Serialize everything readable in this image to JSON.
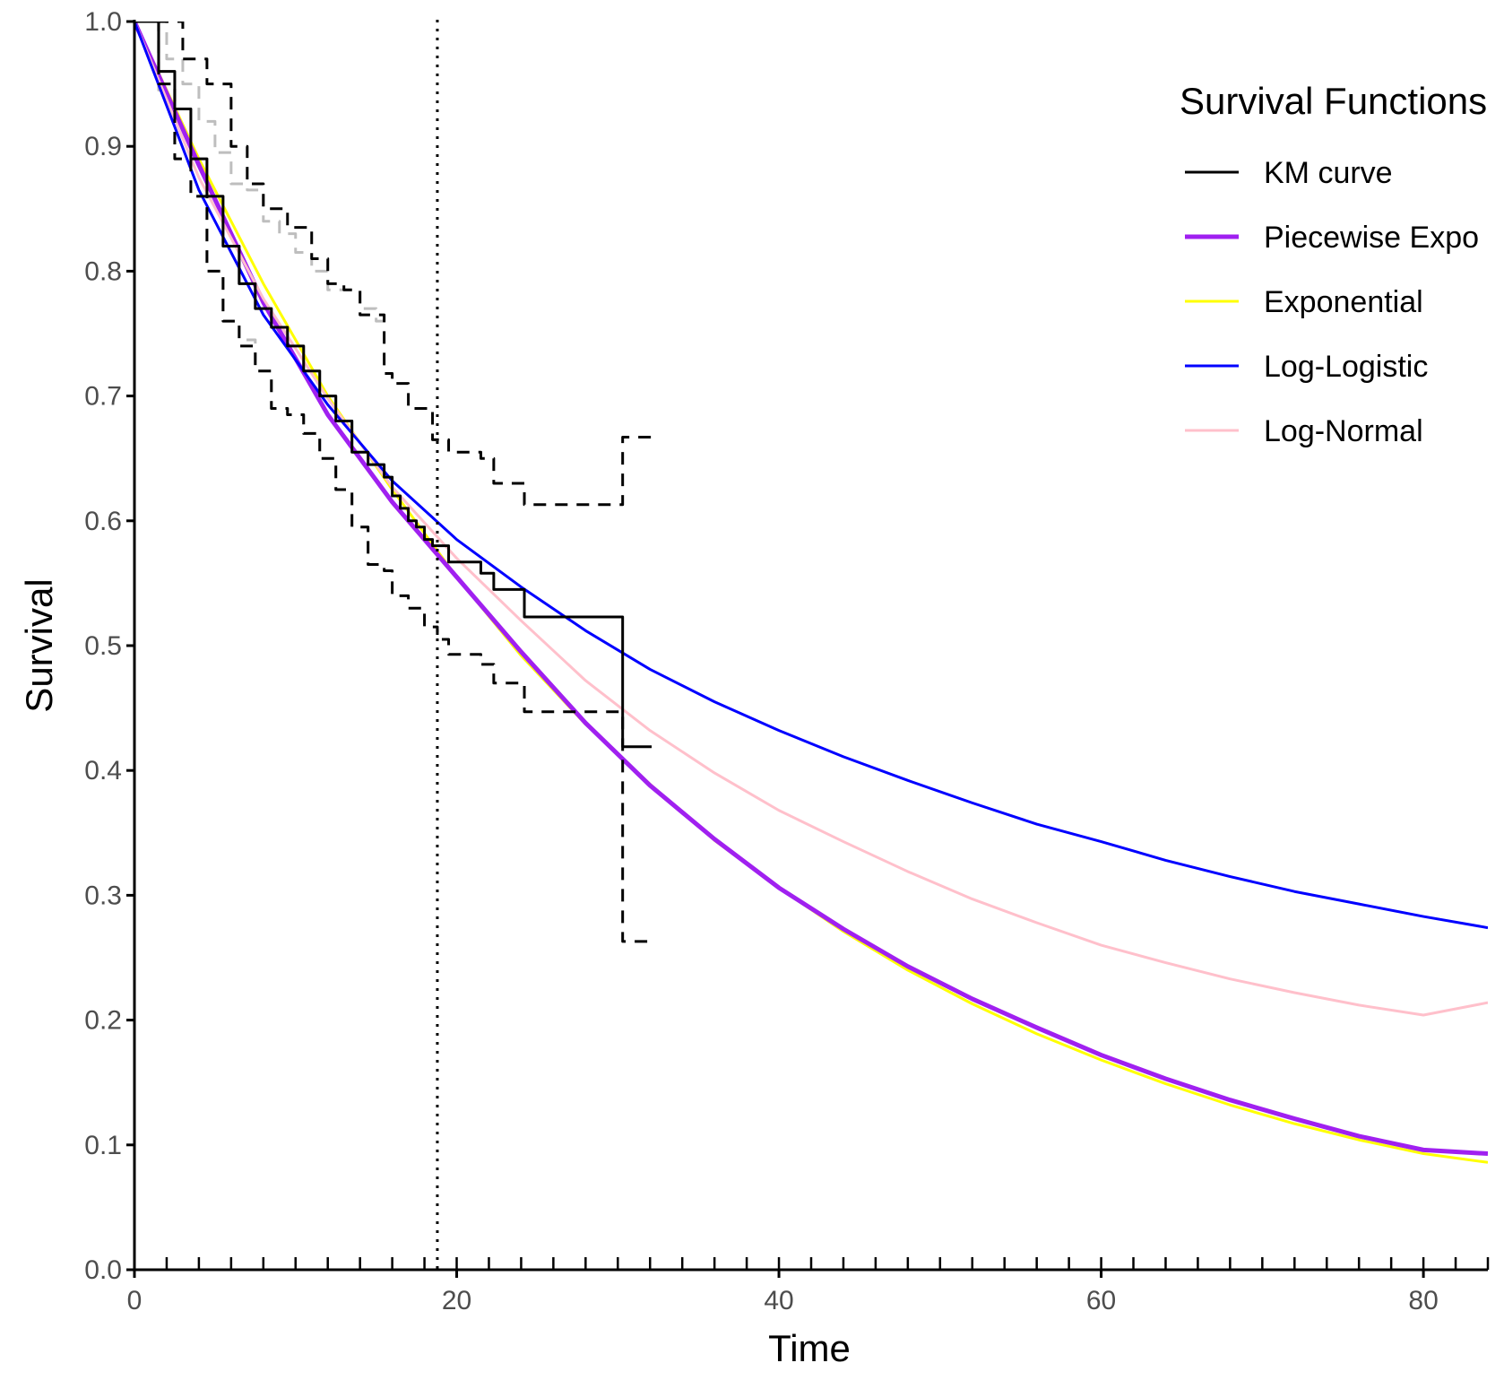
{
  "chart_data": {
    "type": "line",
    "xlabel": "Time",
    "ylabel": "Survival",
    "xlim": [
      0,
      84
    ],
    "ylim": [
      0,
      1
    ],
    "x_ticks": [
      0,
      20,
      40,
      60,
      80
    ],
    "y_ticks": [
      0.0,
      0.1,
      0.2,
      0.3,
      0.4,
      0.5,
      0.6,
      0.7,
      0.8,
      0.9,
      1.0
    ],
    "y_tick_labels": [
      "0.0",
      "0.1",
      "0.2",
      "0.3",
      "0.4",
      "0.5",
      "0.6",
      "0.7",
      "0.8",
      "0.9",
      "1.0"
    ],
    "grid": false,
    "vertical_reference_line": 18.8,
    "legend": {
      "title": "Survival Functions",
      "position": "top-right"
    },
    "series": [
      {
        "name": "KM curve",
        "color": "#000000",
        "style": "step",
        "x": [
          0,
          1.5,
          2.5,
          3.5,
          4.5,
          5.5,
          6.5,
          7.5,
          8.5,
          9.5,
          10.5,
          11.5,
          12.5,
          13.5,
          14.5,
          15.5,
          16,
          16.5,
          17,
          17.5,
          18,
          18.5,
          19.5,
          21.5,
          22.3,
          24.2,
          30.3,
          32.1
        ],
        "y": [
          1.0,
          0.96,
          0.93,
          0.89,
          0.86,
          0.82,
          0.79,
          0.77,
          0.755,
          0.74,
          0.72,
          0.7,
          0.68,
          0.655,
          0.645,
          0.635,
          0.62,
          0.61,
          0.6,
          0.595,
          0.585,
          0.58,
          0.567,
          0.558,
          0.545,
          0.523,
          0.419,
          0.419
        ]
      },
      {
        "name": "KM upper CI",
        "color": "#000000",
        "style": "step-dashed",
        "x": [
          0,
          1.5,
          3,
          4.5,
          6,
          7,
          8,
          9.5,
          11,
          12,
          13,
          14,
          15.5,
          16,
          17,
          18.5,
          19.5,
          21.5,
          22.3,
          24.2,
          30.3,
          32.1
        ],
        "y": [
          1.0,
          1.0,
          0.97,
          0.95,
          0.9,
          0.87,
          0.85,
          0.835,
          0.81,
          0.79,
          0.785,
          0.765,
          0.718,
          0.71,
          0.69,
          0.665,
          0.655,
          0.65,
          0.63,
          0.613,
          0.667,
          0.667
        ]
      },
      {
        "name": "KM lower CI",
        "color": "#000000",
        "style": "step-dashed",
        "x": [
          0,
          1.5,
          2.5,
          3.5,
          4.5,
          5.5,
          6.5,
          7.5,
          8.5,
          9.5,
          10.5,
          11.5,
          12.5,
          13.5,
          14.5,
          15.5,
          16,
          17,
          18,
          18.8,
          19.5,
          21.5,
          22.3,
          24.2,
          30.3,
          32.1
        ],
        "y": [
          1.0,
          0.95,
          0.89,
          0.86,
          0.8,
          0.76,
          0.74,
          0.72,
          0.69,
          0.685,
          0.67,
          0.65,
          0.625,
          0.595,
          0.565,
          0.56,
          0.54,
          0.53,
          0.515,
          0.505,
          0.493,
          0.485,
          0.47,
          0.447,
          0.263,
          0.263
        ]
      },
      {
        "name": "Piecewise Expo",
        "color": "#a020f0",
        "style": "line",
        "x": [
          0,
          4,
          8,
          12,
          16,
          20,
          24,
          28,
          32,
          36,
          40,
          44,
          48,
          52,
          56,
          60,
          64,
          68,
          72,
          76,
          80,
          84
        ],
        "y": [
          1.0,
          0.885,
          0.775,
          0.685,
          0.615,
          0.555,
          0.495,
          0.438,
          0.388,
          0.345,
          0.306,
          0.273,
          0.243,
          0.217,
          0.194,
          0.172,
          0.153,
          0.136,
          0.121,
          0.107,
          0.096,
          0.093
        ]
      },
      {
        "name": "Exponential",
        "color": "#ffff00",
        "style": "line",
        "x": [
          0,
          4,
          8,
          12,
          16,
          20,
          24,
          28,
          32,
          36,
          40,
          44,
          48,
          52,
          56,
          60,
          64,
          68,
          72,
          76,
          80,
          84
        ],
        "y": [
          1.0,
          0.89,
          0.79,
          0.7,
          0.625,
          0.555,
          0.492,
          0.437,
          0.389,
          0.344,
          0.306,
          0.271,
          0.24,
          0.213,
          0.189,
          0.168,
          0.149,
          0.132,
          0.117,
          0.104,
          0.093,
          0.086
        ]
      },
      {
        "name": "Log-Logistic",
        "color": "#0000ff",
        "style": "line",
        "x": [
          0,
          4,
          8,
          12,
          16,
          20,
          24,
          28,
          32,
          36,
          40,
          44,
          48,
          52,
          56,
          60,
          64,
          68,
          72,
          76,
          80,
          84
        ],
        "y": [
          1.0,
          0.865,
          0.765,
          0.693,
          0.632,
          0.585,
          0.547,
          0.512,
          0.481,
          0.455,
          0.432,
          0.411,
          0.392,
          0.374,
          0.357,
          0.343,
          0.328,
          0.315,
          0.303,
          0.293,
          0.283,
          0.274
        ]
      },
      {
        "name": "Log-Normal",
        "color": "#ffc0cb",
        "style": "line",
        "x": [
          0,
          4,
          8,
          12,
          16,
          20,
          24,
          28,
          32,
          36,
          40,
          44,
          48,
          52,
          56,
          60,
          64,
          68,
          72,
          76,
          80,
          84
        ],
        "y": [
          1.0,
          0.875,
          0.778,
          0.698,
          0.627,
          0.57,
          0.52,
          0.472,
          0.432,
          0.398,
          0.368,
          0.343,
          0.319,
          0.297,
          0.278,
          0.26,
          0.246,
          0.233,
          0.222,
          0.212,
          0.204,
          0.214
        ]
      },
      {
        "name": "Reference KM upper CI",
        "color": "#bebebe",
        "style": "step-dashed",
        "x": [
          0,
          2,
          3,
          4,
          5,
          6,
          7,
          8,
          9,
          10,
          11,
          12,
          13,
          14,
          15,
          16
        ],
        "y": [
          1.0,
          0.97,
          0.95,
          0.92,
          0.895,
          0.87,
          0.865,
          0.84,
          0.83,
          0.815,
          0.8,
          0.785,
          0.785,
          0.77,
          0.76,
          0.76
        ]
      },
      {
        "name": "Reference KM curve",
        "color": "#bebebe",
        "style": "step",
        "x": [
          0,
          1.5,
          2.5,
          3.5,
          4.5,
          5.5,
          6.5,
          7.5,
          8.5,
          9.5,
          10.5,
          11.5,
          12.5,
          13.5,
          14.5
        ],
        "y": [
          1.0,
          0.96,
          0.93,
          0.89,
          0.86,
          0.82,
          0.79,
          0.77,
          0.755,
          0.74,
          0.72,
          0.7,
          0.68,
          0.655,
          0.655
        ]
      },
      {
        "name": "Reference KM lower CI",
        "color": "#bebebe",
        "style": "step-dashed",
        "x": [
          0,
          1.5,
          2.5,
          3.5,
          4.5,
          5.5,
          6.5,
          7.5,
          8.5,
          9.5,
          10.5,
          11.5,
          12.5,
          13.5,
          14.5,
          15.5
        ],
        "y": [
          1.0,
          0.945,
          0.89,
          0.86,
          0.8,
          0.76,
          0.745,
          0.72,
          0.69,
          0.685,
          0.67,
          0.65,
          0.625,
          0.595,
          0.565,
          0.565
        ]
      }
    ],
    "legend_entries": [
      {
        "label": "KM curve",
        "color": "#000000",
        "width": 3
      },
      {
        "label": "Piecewise Expo",
        "color": "#a020f0",
        "width": 5
      },
      {
        "label": "Exponential",
        "color": "#ffff00",
        "width": 3
      },
      {
        "label": "Log-Logistic",
        "color": "#0000ff",
        "width": 3
      },
      {
        "label": "Log-Normal",
        "color": "#ffc0cb",
        "width": 3
      }
    ]
  }
}
